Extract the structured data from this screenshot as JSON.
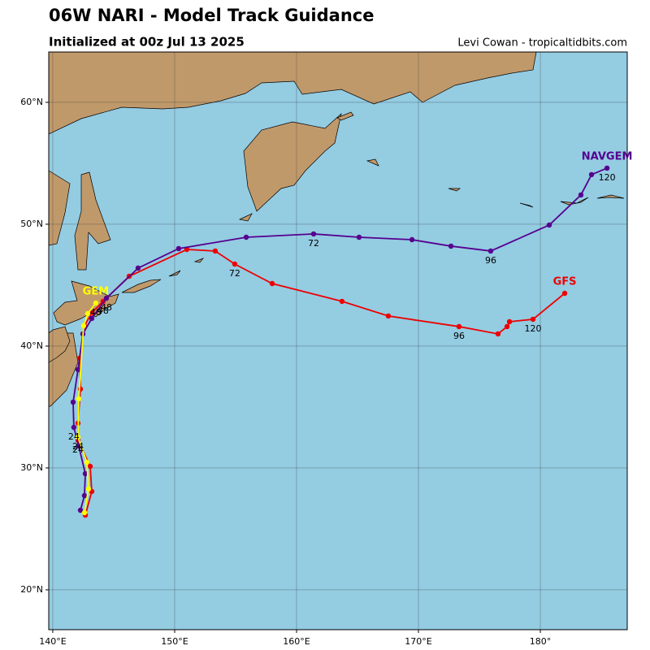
{
  "header": {
    "title": "06W NARI - Model Track Guidance",
    "subtitle": "Initialized at 00z Jul 13 2025",
    "credit": "Levi Cowan - tropicaltidbits.com"
  },
  "map": {
    "lonlim": [
      139.67,
      187.13
    ],
    "latlim": [
      16.73,
      64.13
    ],
    "lonticks": [
      {
        "value": 140,
        "label": "140°E"
      },
      {
        "value": 150,
        "label": "150°E"
      },
      {
        "value": 160,
        "label": "160°E"
      },
      {
        "value": 170,
        "label": "170°E"
      },
      {
        "value": 180,
        "label": "180°"
      }
    ],
    "latticks": [
      {
        "value": 20,
        "label": "20°N"
      },
      {
        "value": 30,
        "label": "30°N"
      },
      {
        "value": 40,
        "label": "40°N"
      },
      {
        "value": 50,
        "label": "50°N"
      },
      {
        "value": 60,
        "label": "60°N"
      }
    ],
    "grid": true,
    "tracks": [
      {
        "name": "GFS",
        "color": "#ee0000",
        "lon": [
          142.67,
          143.2,
          143.07,
          142.07,
          142.07,
          142.27,
          142.2,
          142.6,
          143.2,
          144.13,
          146.27,
          151.0,
          153.33,
          154.93,
          158.0,
          163.73,
          167.53,
          173.33,
          176.53,
          177.27,
          177.47,
          179.4,
          182.0
        ],
        "lat": [
          26.13,
          28.07,
          30.13,
          32.27,
          33.67,
          36.47,
          39.0,
          41.67,
          42.73,
          43.67,
          45.73,
          47.93,
          47.8,
          46.73,
          45.13,
          43.67,
          42.47,
          41.6,
          41.0,
          41.6,
          42.0,
          42.2,
          44.33
        ],
        "hour_labels": [
          null,
          null,
          null,
          "24",
          null,
          null,
          null,
          null,
          null,
          "48",
          null,
          null,
          null,
          "72",
          null,
          null,
          null,
          "96",
          null,
          null,
          null,
          "120",
          null
        ]
      },
      {
        "name": "NAVGEM",
        "color": "#55008f",
        "lon": [
          142.27,
          142.6,
          142.67,
          142.13,
          141.73,
          141.67,
          142.07,
          142.47,
          143.2,
          144.4,
          147.0,
          150.33,
          155.87,
          161.4,
          165.13,
          169.47,
          172.67,
          175.93,
          180.73,
          183.33,
          184.2,
          185.47
        ],
        "lat": [
          26.53,
          27.73,
          29.53,
          31.8,
          33.33,
          35.4,
          38.07,
          41.0,
          42.27,
          43.93,
          46.4,
          48.0,
          48.93,
          49.2,
          48.93,
          48.73,
          48.2,
          47.8,
          49.93,
          52.4,
          54.07,
          54.6
        ],
        "hour_labels": [
          null,
          null,
          null,
          null,
          "24",
          null,
          null,
          null,
          null,
          "48",
          null,
          null,
          null,
          "72",
          null,
          null,
          null,
          "96",
          null,
          null,
          null,
          "120"
        ]
      },
      {
        "name": "GEM",
        "color": "#ffff00",
        "lon": [
          142.6,
          142.93,
          142.8,
          142.07,
          142.13,
          142.53,
          142.87,
          143.53
        ],
        "lat": [
          26.33,
          28.27,
          30.47,
          32.53,
          35.67,
          41.67,
          42.67,
          43.53
        ],
        "hour_labels": [
          null,
          null,
          null,
          "24",
          null,
          null,
          null,
          "48"
        ]
      }
    ]
  }
}
